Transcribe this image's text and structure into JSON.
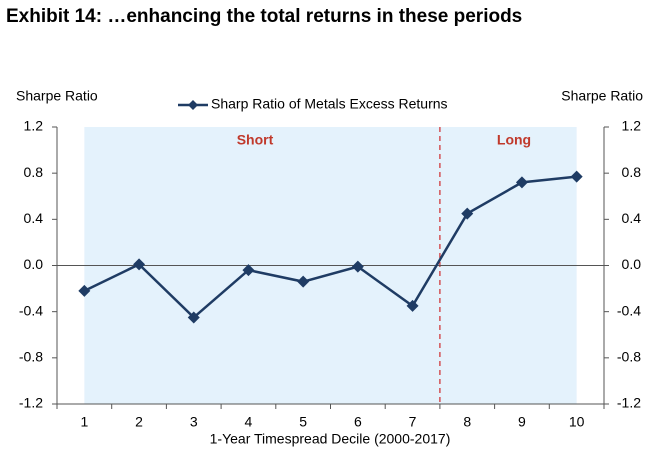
{
  "chart_data": {
    "type": "line",
    "title": "Exhibit 14: …enhancing the total returns in these periods",
    "y_label": "Sharpe Ratio",
    "y2_label": "Sharpe Ratio",
    "x_label": "1-Year Timespread Decile (2000-2017)",
    "annotations": [
      "Short",
      "Long"
    ],
    "categories": [
      "1",
      "2",
      "3",
      "4",
      "5",
      "6",
      "7",
      "8",
      "9",
      "10"
    ],
    "series": [
      {
        "name": "Sharp Ratio of Metals Excess Returns",
        "color": "#1f3c64",
        "values": [
          -0.22,
          0.01,
          -0.45,
          -0.04,
          -0.14,
          -0.01,
          -0.35,
          0.45,
          0.72,
          0.77
        ]
      }
    ],
    "ylim": [
      -1.2,
      1.2
    ],
    "yticks": [
      -1.2,
      -0.8,
      -0.4,
      {
        "value": 0,
        "label": "0.0"
      },
      0.4,
      0.8,
      1.2
    ],
    "y2lim": [
      -1.2,
      1.2
    ],
    "y2ticks": [
      -1.2,
      -0.8,
      -0.4,
      {
        "value": 0,
        "label": "0.0"
      },
      0.4,
      0.8,
      1.2
    ],
    "legend": "top"
  }
}
